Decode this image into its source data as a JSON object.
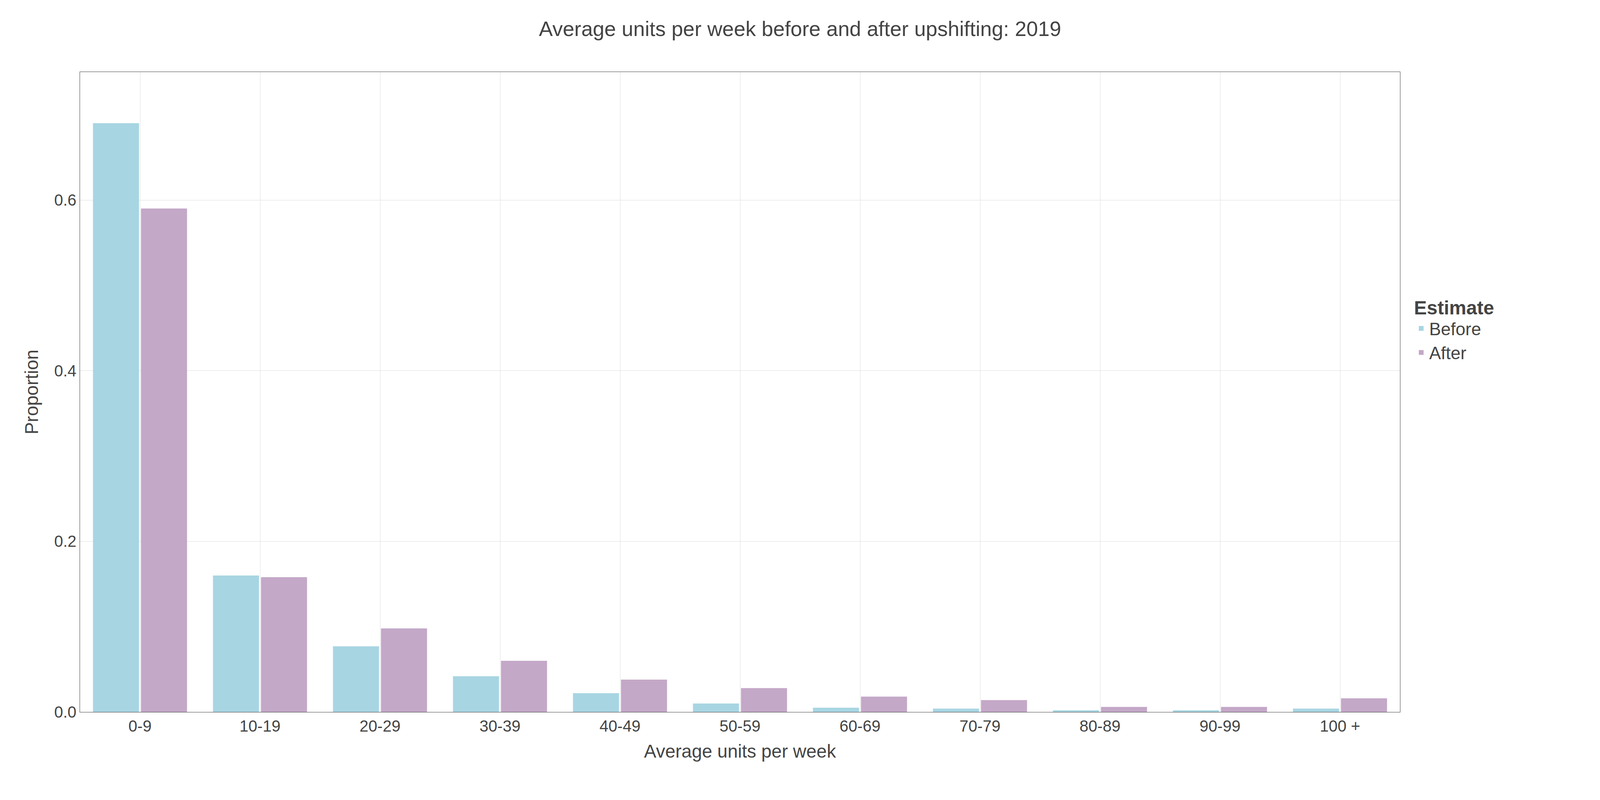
{
  "chart_data": {
    "type": "bar",
    "title": "Average units per week before and after upshifting: 2019",
    "x_label": "Average units per week",
    "y_label": "Proportion",
    "categories": [
      "0-9",
      "10-19",
      "20-29",
      "30-39",
      "40-49",
      "50-59",
      "60-69",
      "70-79",
      "80-89",
      "90-99",
      "100 +"
    ],
    "series": [
      {
        "name": "Before",
        "color": "#a8d5e2",
        "values": [
          0.69,
          0.16,
          0.077,
          0.042,
          0.022,
          0.01,
          0.005,
          0.004,
          0.002,
          0.002,
          0.004
        ]
      },
      {
        "name": "After",
        "color": "#c4a8c8",
        "values": [
          0.59,
          0.158,
          0.098,
          0.06,
          0.038,
          0.028,
          0.018,
          0.014,
          0.006,
          0.006,
          0.016
        ]
      }
    ],
    "legend_title": "Estimate",
    "legend": "right",
    "ylim": [
      0,
      0.75
    ],
    "yticks": [
      {
        "value": 0.0,
        "label": "0.0"
      },
      0.2,
      0.4,
      0.6
    ],
    "grid": true
  }
}
